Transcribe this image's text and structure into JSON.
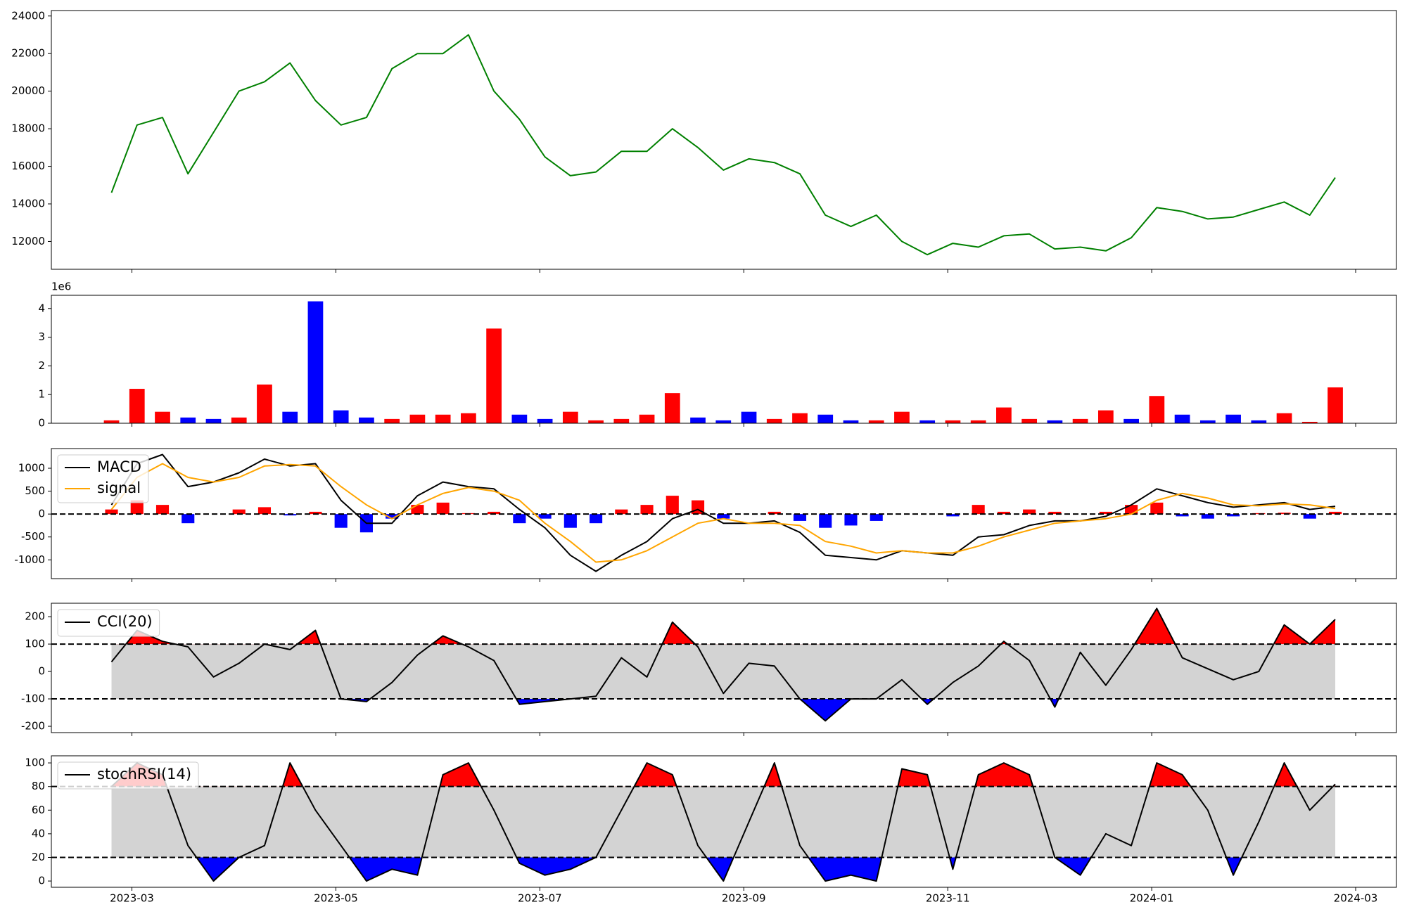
{
  "chart_data": [
    {
      "type": "line",
      "x": [
        -0.2,
        0.05,
        0.3,
        0.55,
        0.8,
        1.05,
        1.3,
        1.55,
        1.8,
        2.05,
        2.3,
        2.55,
        2.8,
        3.05,
        3.3,
        3.55,
        3.8,
        4.05,
        4.3,
        4.55,
        4.8,
        5.05,
        5.3,
        5.55,
        5.8,
        6.05,
        6.3,
        6.55,
        6.8,
        7.05,
        7.3,
        7.55,
        7.8,
        8.05,
        8.3,
        8.55,
        8.8,
        9.05,
        9.3,
        9.55,
        9.8,
        10.05,
        10.3,
        10.55,
        10.8,
        11.05,
        11.3,
        11.55,
        11.8
      ],
      "series": [
        {
          "color": "#008000",
          "values": [
            14600,
            18200,
            18600,
            15600,
            17800,
            20000,
            20500,
            21500,
            19500,
            18200,
            18600,
            21200,
            22000,
            22000,
            23000,
            20000,
            18500,
            16500,
            15500,
            15700,
            16800,
            16800,
            18000,
            17000,
            15800,
            16400,
            16200,
            15600,
            13400,
            12800,
            13400,
            12000,
            11300,
            11900,
            11700,
            12300,
            12400,
            11600,
            11700,
            11500,
            12200,
            13800,
            13600,
            13200,
            13300,
            13700,
            14100,
            13400,
            15400
          ]
        }
      ],
      "xlim": [
        -0.79,
        12.4
      ],
      "ylim": [
        10520,
        24290
      ],
      "yticks": [
        12000,
        14000,
        16000,
        18000,
        20000,
        22000,
        24000
      ]
    },
    {
      "type": "bar",
      "offset_label": "1e6",
      "x": [
        -0.2,
        0.05,
        0.3,
        0.55,
        0.8,
        1.05,
        1.3,
        1.55,
        1.8,
        2.05,
        2.3,
        2.55,
        2.8,
        3.05,
        3.3,
        3.55,
        3.8,
        4.05,
        4.3,
        4.55,
        4.8,
        5.05,
        5.3,
        5.55,
        5.8,
        6.05,
        6.3,
        6.55,
        6.8,
        7.05,
        7.3,
        7.55,
        7.8,
        8.05,
        8.3,
        8.55,
        8.8,
        9.05,
        9.3,
        9.55,
        9.8,
        10.05,
        10.3,
        10.55,
        10.8,
        11.05,
        11.3,
        11.55,
        11.8
      ],
      "values": [
        0.1,
        1.2,
        0.4,
        0.2,
        0.15,
        0.2,
        1.35,
        0.4,
        4.25,
        0.45,
        0.2,
        0.15,
        0.3,
        0.3,
        0.35,
        3.3,
        0.3,
        0.15,
        0.4,
        0.1,
        0.15,
        0.3,
        1.05,
        0.2,
        0.1,
        0.4,
        0.15,
        0.35,
        0.3,
        0.1,
        0.1,
        0.4,
        0.1,
        0.1,
        0.1,
        0.55,
        0.15,
        0.1,
        0.15,
        0.45,
        0.15,
        0.95,
        0.3,
        0.1,
        0.3,
        0.1,
        0.35,
        0.05,
        1.25
      ],
      "colors": [
        "#ff0000",
        "#ff0000",
        "#ff0000",
        "#0000ff",
        "#0000ff",
        "#ff0000",
        "#ff0000",
        "#0000ff",
        "#0000ff",
        "#0000ff",
        "#0000ff",
        "#ff0000",
        "#ff0000",
        "#ff0000",
        "#ff0000",
        "#ff0000",
        "#0000ff",
        "#0000ff",
        "#ff0000",
        "#ff0000",
        "#ff0000",
        "#ff0000",
        "#ff0000",
        "#0000ff",
        "#0000ff",
        "#0000ff",
        "#ff0000",
        "#ff0000",
        "#0000ff",
        "#0000ff",
        "#ff0000",
        "#ff0000",
        "#0000ff",
        "#ff0000",
        "#ff0000",
        "#ff0000",
        "#ff0000",
        "#0000ff",
        "#ff0000",
        "#ff0000",
        "#0000ff",
        "#ff0000",
        "#0000ff",
        "#0000ff",
        "#0000ff",
        "#0000ff",
        "#ff0000",
        "#ff0000",
        "#ff0000"
      ],
      "xlim": [
        -0.79,
        12.4
      ],
      "ylim": [
        0,
        4.46
      ],
      "yticks": [
        0,
        1,
        2,
        3,
        4
      ]
    },
    {
      "type": "macd",
      "x": [
        -0.2,
        0.05,
        0.3,
        0.55,
        0.8,
        1.05,
        1.3,
        1.55,
        1.8,
        2.05,
        2.3,
        2.55,
        2.8,
        3.05,
        3.3,
        3.55,
        3.8,
        4.05,
        4.3,
        4.55,
        4.8,
        5.05,
        5.3,
        5.55,
        5.8,
        6.05,
        6.3,
        6.55,
        6.8,
        7.05,
        7.3,
        7.55,
        7.8,
        8.05,
        8.3,
        8.55,
        8.8,
        9.05,
        9.3,
        9.55,
        9.8,
        10.05,
        10.3,
        10.55,
        10.8,
        11.05,
        11.3,
        11.55,
        11.8
      ],
      "series": [
        {
          "name": "MACD",
          "color": "#000000",
          "values": [
            200,
            1100,
            1300,
            600,
            700,
            900,
            1200,
            1050,
            1100,
            300,
            -200,
            -200,
            400,
            700,
            600,
            550,
            100,
            -300,
            -900,
            -1250,
            -900,
            -600,
            -100,
            100,
            -200,
            -200,
            -150,
            -400,
            -900,
            -950,
            -1000,
            -800,
            -850,
            -900,
            -500,
            -450,
            -250,
            -150,
            -150,
            -50,
            200,
            550,
            400,
            250,
            150,
            200,
            250,
            100,
            170
          ]
        },
        {
          "name": "signal",
          "color": "#ffa500",
          "values": [
            100,
            800,
            1100,
            800,
            700,
            800,
            1050,
            1080,
            1050,
            600,
            200,
            -100,
            200,
            450,
            580,
            500,
            300,
            -200,
            -600,
            -1050,
            -1000,
            -800,
            -500,
            -200,
            -100,
            -200,
            -200,
            -250,
            -600,
            -700,
            -850,
            -800,
            -850,
            -850,
            -700,
            -500,
            -350,
            -200,
            -150,
            -100,
            0,
            300,
            450,
            350,
            200,
            180,
            220,
            200,
            120
          ]
        }
      ],
      "histogram": [
        100,
        300,
        200,
        -200,
        0,
        100,
        150,
        -30,
        50,
        -300,
        -400,
        -100,
        200,
        250,
        20,
        50,
        -200,
        -100,
        -300,
        -200,
        100,
        200,
        400,
        300,
        -100,
        0,
        50,
        -150,
        -300,
        -250,
        -150,
        0,
        0,
        -50,
        200,
        50,
        100,
        50,
        0,
        50,
        200,
        250,
        -50,
        -100,
        -50,
        20,
        30,
        -100,
        50
      ],
      "up_color": "#ff0000",
      "down_color": "#0000ff",
      "reference_lines": [
        0
      ],
      "legend": "upper left",
      "xlim": [
        -0.79,
        12.4
      ],
      "ylim": [
        -1410,
        1430
      ],
      "yticks": [
        -1000,
        -500,
        0,
        500,
        1000
      ]
    },
    {
      "type": "band",
      "x": [
        -0.2,
        0.05,
        0.3,
        0.55,
        0.8,
        1.05,
        1.3,
        1.55,
        1.8,
        2.05,
        2.3,
        2.55,
        2.8,
        3.05,
        3.3,
        3.55,
        3.8,
        4.05,
        4.3,
        4.55,
        4.8,
        5.05,
        5.3,
        5.55,
        5.8,
        6.05,
        6.3,
        6.55,
        6.8,
        7.05,
        7.3,
        7.55,
        7.8,
        8.05,
        8.3,
        8.55,
        8.8,
        9.05,
        9.3,
        9.55,
        9.8,
        10.05,
        10.3,
        10.55,
        10.8,
        11.05,
        11.3,
        11.55,
        11.8
      ],
      "series": [
        {
          "name": "CCI(20)",
          "color": "#000000",
          "values": [
            35,
            150,
            110,
            90,
            -20,
            30,
            100,
            80,
            150,
            -100,
            -110,
            -40,
            60,
            130,
            90,
            40,
            -120,
            -110,
            -100,
            -90,
            50,
            -20,
            180,
            90,
            -80,
            30,
            20,
            -100,
            -180,
            -100,
            -100,
            -30,
            -120,
            -40,
            20,
            110,
            40,
            -130,
            70,
            -50,
            80,
            230,
            50,
            10,
            -30,
            0,
            170,
            100,
            190
          ]
        }
      ],
      "reference_lines": [
        100,
        -100
      ],
      "between_color": "#d3d3d3",
      "above_color": "#ff0000",
      "below_color": "#0000ff",
      "legend": "upper left",
      "xlim": [
        -0.79,
        12.4
      ],
      "ylim": [
        -223,
        249
      ],
      "yticks": [
        -200,
        -100,
        0,
        100,
        200
      ]
    },
    {
      "type": "band",
      "x": [
        -0.2,
        0.05,
        0.3,
        0.55,
        0.8,
        1.05,
        1.3,
        1.55,
        1.8,
        2.05,
        2.3,
        2.55,
        2.8,
        3.05,
        3.3,
        3.55,
        3.8,
        4.05,
        4.3,
        4.55,
        4.8,
        5.05,
        5.3,
        5.55,
        5.8,
        6.05,
        6.3,
        6.55,
        6.8,
        7.05,
        7.3,
        7.55,
        7.8,
        8.05,
        8.3,
        8.55,
        8.8,
        9.05,
        9.3,
        9.55,
        9.8,
        10.05,
        10.3,
        10.55,
        10.8,
        11.05,
        11.3,
        11.55,
        11.8
      ],
      "series": [
        {
          "name": "stochRSI(14)",
          "color": "#000000",
          "values": [
            80,
            100,
            90,
            30,
            0,
            20,
            30,
            100,
            60,
            30,
            0,
            10,
            5,
            90,
            100,
            60,
            15,
            5,
            10,
            20,
            60,
            100,
            90,
            30,
            0,
            50,
            100,
            30,
            0,
            5,
            0,
            95,
            90,
            10,
            90,
            100,
            90,
            20,
            5,
            40,
            30,
            100,
            90,
            60,
            5,
            50,
            100,
            60,
            82
          ]
        }
      ],
      "reference_lines": [
        80,
        20
      ],
      "between_color": "#d3d3d3",
      "above_color": "#ff0000",
      "below_color": "#0000ff",
      "legend": "upper left",
      "xlim": [
        -0.79,
        12.4
      ],
      "ylim": [
        -5.3,
        106
      ],
      "yticks": [
        0,
        20,
        40,
        60,
        80,
        100
      ],
      "xticks": [
        {
          "value": 0,
          "label": "2023-03"
        },
        {
          "value": 2,
          "label": "2023-05"
        },
        {
          "value": 4,
          "label": "2023-07"
        },
        {
          "value": 6,
          "label": "2023-09"
        },
        {
          "value": 8,
          "label": "2023-11"
        },
        {
          "value": 10,
          "label": "2024-01"
        },
        {
          "value": 12,
          "label": "2024-03"
        }
      ]
    }
  ]
}
